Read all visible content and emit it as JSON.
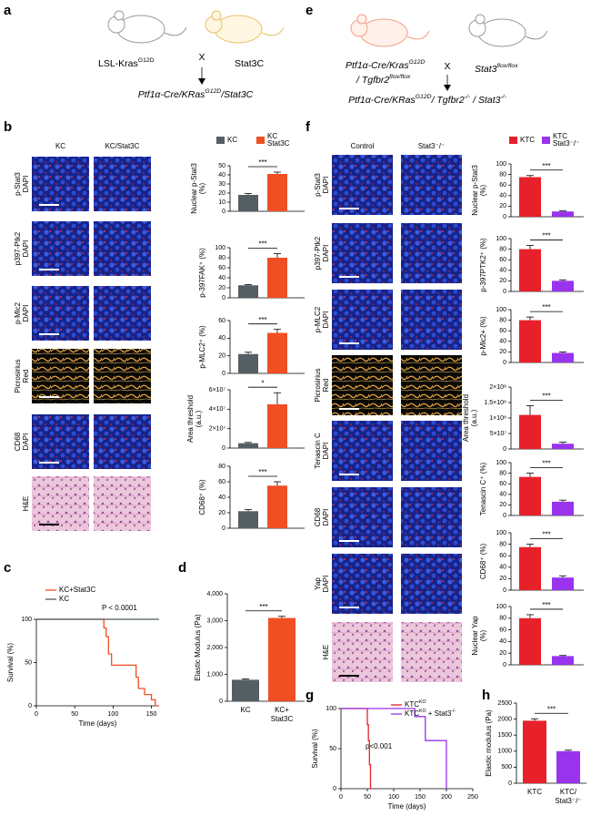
{
  "panel_letters": [
    "a",
    "b",
    "c",
    "d",
    "e",
    "f",
    "g",
    "h"
  ],
  "schematic_a": {
    "parent1": [
      "LSL-Kras",
      "G12D"
    ],
    "cross": "X",
    "parent2": [
      "Stat3C"
    ],
    "offspring": [
      "Ptf1α-Cre/KRas",
      "G12D",
      "/Stat3C"
    ]
  },
  "schematic_e": {
    "parent1": [
      "Ptf1α-Cre/Kras",
      "G12D"
    ],
    "parent1_line2": [
      "/ Tgfbr2",
      "flox/flox"
    ],
    "cross": "X",
    "parent2": [
      "Stat3",
      "flox/flox"
    ],
    "offspring": [
      "Ptf1α-Cre/KRas",
      "G12D",
      "/ Tgfbr2",
      "-/-",
      " / Stat3",
      "-/-"
    ]
  },
  "images_b": {
    "columns": [
      "KC",
      "KC/Stat3C"
    ],
    "rows": [
      {
        "kind": "fluor",
        "lines": [
          "p-Stat3",
          "DAPI"
        ]
      },
      {
        "kind": "fluor",
        "lines": [
          "p397-Ptk2",
          "DAPI"
        ]
      },
      {
        "kind": "fluor",
        "lines": [
          "p-Mlc2",
          "DAPI"
        ]
      },
      {
        "kind": "picro",
        "lines": [
          "Picrosirius",
          "Red"
        ]
      },
      {
        "kind": "fluor",
        "lines": [
          "CD68",
          "DAPI"
        ]
      },
      {
        "kind": "he",
        "lines": [
          "H&E"
        ]
      }
    ]
  },
  "images_f": {
    "columns": [
      "Control",
      "Stat3⁻/⁻"
    ],
    "rows": [
      {
        "kind": "fluor",
        "lines": [
          "p-Stat3",
          "DAPI"
        ]
      },
      {
        "kind": "fluor",
        "lines": [
          "p397-Ptk2",
          "DAPI"
        ]
      },
      {
        "kind": "fluor",
        "lines": [
          "p-MLC2",
          "DAPI"
        ]
      },
      {
        "kind": "picro",
        "lines": [
          "Picrosirius",
          "Red"
        ]
      },
      {
        "kind": "fluor",
        "lines": [
          "Tenascin C",
          "DAPI"
        ]
      },
      {
        "kind": "fluor",
        "lines": [
          "CD68",
          "DAPI"
        ]
      },
      {
        "kind": "fluor",
        "lines": [
          "Yap",
          "DAPI"
        ]
      },
      {
        "kind": "he",
        "lines": [
          "H&E"
        ]
      }
    ]
  },
  "legends": {
    "b": [
      {
        "name": [
          "KC"
        ],
        "color": "#555f63"
      },
      {
        "name": [
          "KC",
          "Stat3C"
        ],
        "color": "#f04e23"
      }
    ],
    "f": [
      {
        "name": [
          "KTC"
        ],
        "color": "#e8202a"
      },
      {
        "name": [
          "KTC",
          "Stat3⁻/⁻"
        ],
        "color": "#9933ee"
      }
    ]
  },
  "chart_data": [
    {
      "type": "bar",
      "y_label": [
        "Nuclear p-Stat3",
        "(%)"
      ],
      "values": [
        18,
        41
      ],
      "errors": [
        1.5,
        2
      ],
      "colors": [
        "#555f63",
        "#f04e23"
      ],
      "ylim": [
        0,
        50
      ],
      "yticks": [
        0,
        10,
        20,
        30,
        40,
        50
      ],
      "significance": "***"
    },
    {
      "type": "bar",
      "y_label": [
        "p-397FAK⁺ (%)"
      ],
      "values": [
        25,
        80
      ],
      "errors": [
        1.5,
        8
      ],
      "colors": [
        "#555f63",
        "#f04e23"
      ],
      "ylim": [
        0,
        100
      ],
      "yticks": [
        0,
        20,
        40,
        60,
        80,
        100
      ],
      "significance": "***"
    },
    {
      "type": "bar",
      "y_label": [
        "p-MLC2⁺ (%)"
      ],
      "values": [
        22,
        46
      ],
      "errors": [
        2,
        4
      ],
      "colors": [
        "#555f63",
        "#f04e23"
      ],
      "ylim": [
        0,
        60
      ],
      "yticks": [
        0,
        20,
        40,
        60
      ],
      "significance": "***"
    },
    {
      "type": "bar",
      "y_label": [
        "Area threshold",
        "(a.u.)"
      ],
      "values": [
        5000000,
        45000000
      ],
      "errors": [
        800000,
        12000000
      ],
      "colors": [
        "#555f63",
        "#f04e23"
      ],
      "ylim": [
        0,
        60000000
      ],
      "yticks": [
        0,
        {
          "value": 20000000,
          "label": "2×10⁷"
        },
        {
          "value": 40000000,
          "label": "4×10⁷"
        },
        {
          "value": 60000000,
          "label": "6×10⁷"
        }
      ],
      "significance": "*"
    },
    {
      "type": "bar",
      "y_label": [
        "CD68⁺ (%)"
      ],
      "values": [
        22,
        55
      ],
      "errors": [
        2,
        5
      ],
      "colors": [
        "#555f63",
        "#f04e23"
      ],
      "ylim": [
        0,
        80
      ],
      "yticks": [
        0,
        20,
        40,
        60,
        80
      ],
      "significance": "***"
    },
    {
      "type": "line",
      "y_label": "Survival (%)",
      "x_label": "Time (days)",
      "annotation": "P < 0.0001",
      "xlim": [
        0,
        160
      ],
      "xticks": [
        0,
        50,
        100,
        150
      ],
      "ylim": [
        0,
        100
      ],
      "yticks": [
        0,
        50,
        100
      ],
      "series": [
        {
          "name": "KC+Stat3C",
          "color": "#f04e23",
          "x": [
            0,
            88,
            88,
            91,
            91,
            94,
            94,
            98,
            98,
            130,
            130,
            133,
            133,
            141,
            141,
            150,
            150,
            155,
            155,
            160
          ],
          "values": [
            100,
            100,
            90,
            90,
            80,
            80,
            60,
            60,
            47,
            47,
            33,
            33,
            20,
            20,
            13,
            13,
            7,
            7,
            0,
            0
          ]
        },
        {
          "name": "KC",
          "color": "#4a5a5a",
          "x": [
            0,
            160
          ],
          "values": [
            100,
            100
          ]
        }
      ]
    },
    {
      "type": "bar",
      "y_label": [
        "Elastic Modulus (Pa)"
      ],
      "categories": [
        [
          "KC"
        ],
        [
          "KC+",
          "Stat3C"
        ]
      ],
      "values": [
        800,
        3100
      ],
      "errors": [
        30,
        60
      ],
      "colors": [
        "#555f63",
        "#f04e23"
      ],
      "ylim": [
        0,
        4000
      ],
      "yticks": [
        0,
        {
          "value": 1000,
          "label": "1,000"
        },
        {
          "value": 2000,
          "label": "2,000"
        },
        {
          "value": 3000,
          "label": "3,000"
        },
        {
          "value": 4000,
          "label": "4,000"
        }
      ],
      "significance": "***"
    },
    {
      "type": "bar",
      "y_label": [
        "Nuclear p-Stat3",
        "(%)"
      ],
      "values": [
        75,
        10
      ],
      "errors": [
        3,
        1
      ],
      "colors": [
        "#e8202a",
        "#9933ee"
      ],
      "ylim": [
        0,
        100
      ],
      "yticks": [
        0,
        20,
        40,
        60,
        80,
        100
      ],
      "significance": "***"
    },
    {
      "type": "bar",
      "y_label": [
        "p-397PTK2⁺ (%)"
      ],
      "values": [
        80,
        20
      ],
      "errors": [
        7,
        2
      ],
      "colors": [
        "#e8202a",
        "#9933ee"
      ],
      "ylim": [
        0,
        100
      ],
      "yticks": [
        0,
        20,
        40,
        60,
        80,
        100
      ],
      "significance": "***"
    },
    {
      "type": "bar",
      "y_label": [
        "p-Mlc2+ (%)"
      ],
      "values": [
        80,
        18
      ],
      "errors": [
        6,
        2
      ],
      "colors": [
        "#e8202a",
        "#9933ee"
      ],
      "ylim": [
        0,
        100
      ],
      "yticks": [
        0,
        20,
        40,
        60,
        80,
        100
      ],
      "significance": "***"
    },
    {
      "type": "bar",
      "y_label": [
        "Area threshold",
        "(a.u.)"
      ],
      "values": [
        110000000,
        17000000
      ],
      "errors": [
        30000000,
        5000000
      ],
      "colors": [
        "#e8202a",
        "#9933ee"
      ],
      "ylim": [
        0,
        200000000
      ],
      "yticks": [
        0,
        {
          "value": 50000000,
          "label": "5×10⁷"
        },
        {
          "value": 100000000,
          "label": "1×10⁸"
        },
        {
          "value": 150000000,
          "label": "1.5×10⁸"
        },
        {
          "value": 200000000,
          "label": "2×10⁸"
        }
      ],
      "significance": "***"
    },
    {
      "type": "bar",
      "y_label": [
        "Tenascin C⁺ (%)"
      ],
      "values": [
        73,
        26
      ],
      "errors": [
        7,
        3
      ],
      "colors": [
        "#e8202a",
        "#9933ee"
      ],
      "ylim": [
        0,
        100
      ],
      "yticks": [
        0,
        20,
        40,
        60,
        80,
        100
      ],
      "significance": "***"
    },
    {
      "type": "bar",
      "y_label": [
        "CD68⁺ (%)"
      ],
      "values": [
        75,
        22
      ],
      "errors": [
        5,
        3
      ],
      "colors": [
        "#e8202a",
        "#9933ee"
      ],
      "ylim": [
        0,
        100
      ],
      "yticks": [
        0,
        20,
        40,
        60,
        80,
        100
      ],
      "significance": "***"
    },
    {
      "type": "bar",
      "y_label": [
        "Nuclear Yap",
        "(%)"
      ],
      "values": [
        80,
        15
      ],
      "errors": [
        6,
        1
      ],
      "colors": [
        "#e8202a",
        "#9933ee"
      ],
      "ylim": [
        0,
        100
      ],
      "yticks": [
        0,
        20,
        40,
        60,
        80,
        100
      ],
      "significance": "***"
    },
    {
      "type": "line",
      "y_label": "Survival (%)",
      "x_label": "Time (days)",
      "annotation": "p<0.001",
      "xlim": [
        0,
        250
      ],
      "xticks": [
        0,
        50,
        100,
        150,
        200,
        250
      ],
      "ylim": [
        0,
        100
      ],
      "yticks": [
        0,
        50,
        100
      ],
      "series": [
        {
          "name": [
            "KTC",
            "KO"
          ],
          "color": "#e8202a",
          "x": [
            0,
            50,
            50,
            52,
            52,
            54,
            54,
            56,
            56,
            58
          ],
          "values": [
            100,
            100,
            80,
            80,
            60,
            60,
            30,
            30,
            0,
            0
          ]
        },
        {
          "name": [
            "KTC",
            "KO",
            " + Stat3",
            "-/-"
          ],
          "color": "#9933ee",
          "x": [
            0,
            140,
            140,
            160,
            160,
            200,
            200
          ],
          "values": [
            100,
            100,
            90,
            90,
            60,
            60,
            0
          ]
        }
      ]
    },
    {
      "type": "bar",
      "y_label": [
        "Elastic modulus (Pa)"
      ],
      "categories": [
        [
          "KTC"
        ],
        [
          "KTC/",
          "Stat3⁻/⁻"
        ]
      ],
      "values": [
        1950,
        1000
      ],
      "errors": [
        60,
        30
      ],
      "colors": [
        "#e8202a",
        "#9933ee"
      ],
      "ylim": [
        0,
        2500
      ],
      "yticks": [
        0,
        500,
        1000,
        1500,
        2000,
        2500
      ],
      "significance": "***"
    }
  ]
}
